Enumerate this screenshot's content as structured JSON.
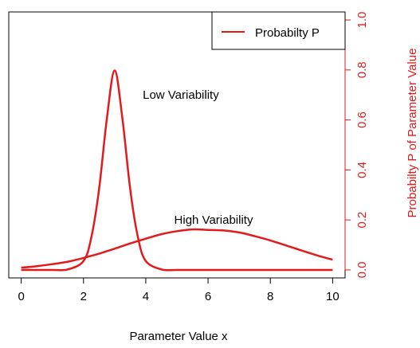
{
  "chart_data": {
    "type": "line",
    "xlabel": "Parameter Value x",
    "ylabel": "Probabilty P of Parameter Value",
    "xlim": [
      -0.4,
      10.4
    ],
    "ylim": [
      -0.032,
      1.032
    ],
    "x_ticks": [
      "0",
      "2",
      "4",
      "6",
      "8",
      "10"
    ],
    "y_ticks": [
      "0.0",
      "0.2",
      "0.4",
      "0.6",
      "0.8",
      "1.0"
    ],
    "y_axis_side": "right",
    "grid": false,
    "legend": {
      "position": "top-right",
      "entries": [
        "Probabilty P"
      ]
    },
    "annotations": [
      {
        "text": "Low Variability",
        "x": 4.0,
        "y": 0.7
      },
      {
        "text": "High Variability",
        "x": 5.0,
        "y": 0.2
      }
    ],
    "colors": {
      "series": "#e31a1c",
      "axis_y": "#e31a1c",
      "axis": "#000000"
    },
    "series": [
      {
        "x": [
          0,
          0.5,
          1,
          1.5,
          2,
          2.25,
          2.5,
          2.75,
          3,
          3.25,
          3.5,
          3.75,
          4,
          4.5,
          5,
          6,
          7,
          8,
          9,
          10
        ],
        "values": [
          0.0,
          0.0,
          0.0,
          0.002,
          0.036,
          0.129,
          0.323,
          0.605,
          0.798,
          0.605,
          0.323,
          0.129,
          0.036,
          0.002,
          0.0,
          0.0,
          0.0,
          0.0,
          0.0,
          0.0
        ]
      },
      {
        "x": [
          0,
          0.5,
          1,
          1.5,
          2,
          2.5,
          3,
          3.5,
          4,
          4.5,
          5,
          5.5,
          6,
          6.5,
          7,
          7.5,
          8,
          8.5,
          9,
          9.5,
          10
        ],
        "values": [
          0.009,
          0.015,
          0.023,
          0.033,
          0.048,
          0.065,
          0.085,
          0.106,
          0.125,
          0.143,
          0.155,
          0.162,
          0.16,
          0.158,
          0.15,
          0.135,
          0.118,
          0.098,
          0.078,
          0.058,
          0.041
        ]
      }
    ]
  }
}
